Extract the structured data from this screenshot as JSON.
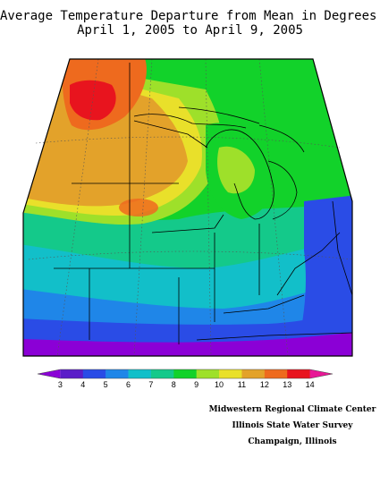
{
  "header": {
    "title": "Average Temperature Departure from Mean in Degrees F",
    "subtitle": "April 1, 2005 to April 9, 2005"
  },
  "legend": {
    "ticks": [
      "3",
      "4",
      "5",
      "6",
      "7",
      "8",
      "9",
      "10",
      "11",
      "12",
      "13",
      "14"
    ],
    "colors": [
      "#8b00d6",
      "#5a1ec8",
      "#2a4ce6",
      "#1f86e8",
      "#12bfc9",
      "#14c98a",
      "#12d22a",
      "#9ee02a",
      "#e9e02a",
      "#e3a22a",
      "#ee6a1e",
      "#e8141e",
      "#e81896"
    ]
  },
  "credits": {
    "line1": "Midwestern Regional Climate Center",
    "line2": "Illinois State Water Survey",
    "line3": "Champaign, Illinois"
  }
}
